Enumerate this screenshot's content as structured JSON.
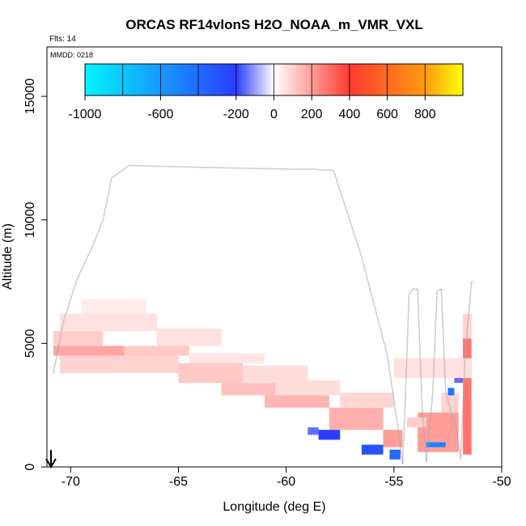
{
  "chart_data": {
    "type": "heatmap",
    "title": "ORCAS RF14vlonS H2O_NOAA_m_VMR_VXL",
    "annotations": {
      "flights": "Flts: 14",
      "date": "MMDD: 0218"
    },
    "xlabel": "Longitude (deg E)",
    "ylabel": "Altitude (m)",
    "xlim": [
      -71.1,
      -50
    ],
    "ylim": [
      0,
      17000
    ],
    "x_ticks": [
      -70,
      -65,
      -60,
      -55,
      -50
    ],
    "x_tick_labels": [
      "-70",
      "-65",
      "-60",
      "-55",
      "-50"
    ],
    "y_ticks": [
      0,
      5000,
      10000,
      15000
    ],
    "y_tick_labels": [
      "0",
      "5000",
      "10000",
      "15000"
    ],
    "colorbar": {
      "range": [
        -1000,
        1000
      ],
      "tick_values": [
        -1000,
        -600,
        -200,
        0,
        200,
        400,
        600,
        800
      ],
      "tick_labels": [
        "-1000",
        "-600",
        "-200",
        "0",
        "200",
        "400",
        "600",
        "800"
      ],
      "colors": {
        "min": "#00f5ff",
        "low": "#2a3dff",
        "mid": "#ffffff",
        "high": "#ff3a30",
        "orange": "#ff9a10",
        "max": "#ffff00"
      }
    },
    "flight_track": {
      "color": "#a8a8a8",
      "points": [
        [
          -70.8,
          3800
        ],
        [
          -70.3,
          6000
        ],
        [
          -69.7,
          7600
        ],
        [
          -69.0,
          8900
        ],
        [
          -68.5,
          10000
        ],
        [
          -68.1,
          11700
        ],
        [
          -67.6,
          12000
        ],
        [
          -67.3,
          12200
        ],
        [
          -65,
          12150
        ],
        [
          -62.5,
          12100
        ],
        [
          -59.5,
          12050
        ],
        [
          -58.8,
          12050
        ],
        [
          -57.8,
          12000
        ],
        [
          -56.5,
          8500
        ],
        [
          -55.3,
          4500
        ],
        [
          -54.8,
          1500
        ],
        [
          -54.6,
          100
        ],
        [
          -54.5,
          2000
        ],
        [
          -54.3,
          7000
        ],
        [
          -54.1,
          7200
        ],
        [
          -53.9,
          7200
        ],
        [
          -53.7,
          2500
        ],
        [
          -53.5,
          200
        ],
        [
          -53.2,
          3000
        ],
        [
          -53.0,
          7100
        ],
        [
          -52.8,
          7200
        ],
        [
          -52.6,
          3000
        ],
        [
          -52.1,
          1500
        ],
        [
          -51.9,
          300
        ],
        [
          -51.7,
          4500
        ],
        [
          -51.4,
          7500
        ],
        [
          -51.3,
          7500
        ]
      ]
    },
    "cells": [
      {
        "x0": -70.8,
        "x1": -67.5,
        "y0": 4500,
        "y1": 4900,
        "value": 180
      },
      {
        "x0": -70.8,
        "x1": -68.5,
        "y0": 4900,
        "y1": 5500,
        "value": 100
      },
      {
        "x0": -70.5,
        "x1": -66.0,
        "y0": 5500,
        "y1": 6200,
        "value": 60
      },
      {
        "x0": -69.5,
        "x1": -66.5,
        "y0": 6200,
        "y1": 6800,
        "value": 40
      },
      {
        "x0": -70.5,
        "x1": -65.0,
        "y0": 3800,
        "y1": 4500,
        "value": 90
      },
      {
        "x0": -67.5,
        "x1": -64.5,
        "y0": 4500,
        "y1": 4900,
        "value": 110
      },
      {
        "x0": -66.0,
        "x1": -63.0,
        "y0": 4900,
        "y1": 5600,
        "value": 60
      },
      {
        "x0": -65.0,
        "x1": -62.0,
        "y0": 3400,
        "y1": 4200,
        "value": 110
      },
      {
        "x0": -64.5,
        "x1": -61.0,
        "y0": 4200,
        "y1": 4600,
        "value": 50
      },
      {
        "x0": -63.0,
        "x1": -60.5,
        "y0": 2900,
        "y1": 3400,
        "value": 130
      },
      {
        "x0": -62.0,
        "x1": -59.0,
        "y0": 3400,
        "y1": 4100,
        "value": 70
      },
      {
        "x0": -61.0,
        "x1": -58.0,
        "y0": 2400,
        "y1": 2900,
        "value": 150
      },
      {
        "x0": -60.5,
        "x1": -57.5,
        "y0": 2900,
        "y1": 3500,
        "value": 70
      },
      {
        "x0": -58.0,
        "x1": -55.5,
        "y0": 1500,
        "y1": 2400,
        "value": 160
      },
      {
        "x0": -57.5,
        "x1": -55.0,
        "y0": 2400,
        "y1": 3000,
        "value": 80
      },
      {
        "x0": -55.5,
        "x1": -54.6,
        "y0": 800,
        "y1": 1500,
        "value": 200
      },
      {
        "x0": -58.5,
        "x1": -57.5,
        "y0": 1100,
        "y1": 1500,
        "value": -200
      },
      {
        "x0": -56.5,
        "x1": -55.5,
        "y0": 500,
        "y1": 900,
        "value": -300
      },
      {
        "x0": -59.0,
        "x1": -58.5,
        "y0": 1300,
        "y1": 1600,
        "value": -150
      },
      {
        "x0": -55.2,
        "x1": -54.7,
        "y0": 300,
        "y1": 700,
        "value": -400
      },
      {
        "x0": -53.9,
        "x1": -52.0,
        "y0": 600,
        "y1": 2200,
        "value": 200
      },
      {
        "x0": -53.5,
        "x1": -52.6,
        "y0": 800,
        "y1": 1000,
        "value": -500
      },
      {
        "x0": -52.8,
        "x1": -52.0,
        "y0": 2200,
        "y1": 3000,
        "value": 90
      },
      {
        "x0": -52.5,
        "x1": -52.2,
        "y0": 2900,
        "y1": 3200,
        "value": -450
      },
      {
        "x0": -54.4,
        "x1": -53.5,
        "y0": 1600,
        "y1": 2000,
        "value": 100
      },
      {
        "x0": -51.8,
        "x1": -51.4,
        "y0": 500,
        "y1": 5200,
        "value": 280
      },
      {
        "x0": -51.8,
        "x1": -51.4,
        "y0": 5200,
        "y1": 6200,
        "value": 90
      },
      {
        "x0": -52.2,
        "x1": -51.8,
        "y0": 3400,
        "y1": 4200,
        "value": -150
      },
      {
        "x0": -55.0,
        "x1": -51.4,
        "y0": 3600,
        "y1": 4400,
        "value": 60
      }
    ]
  }
}
